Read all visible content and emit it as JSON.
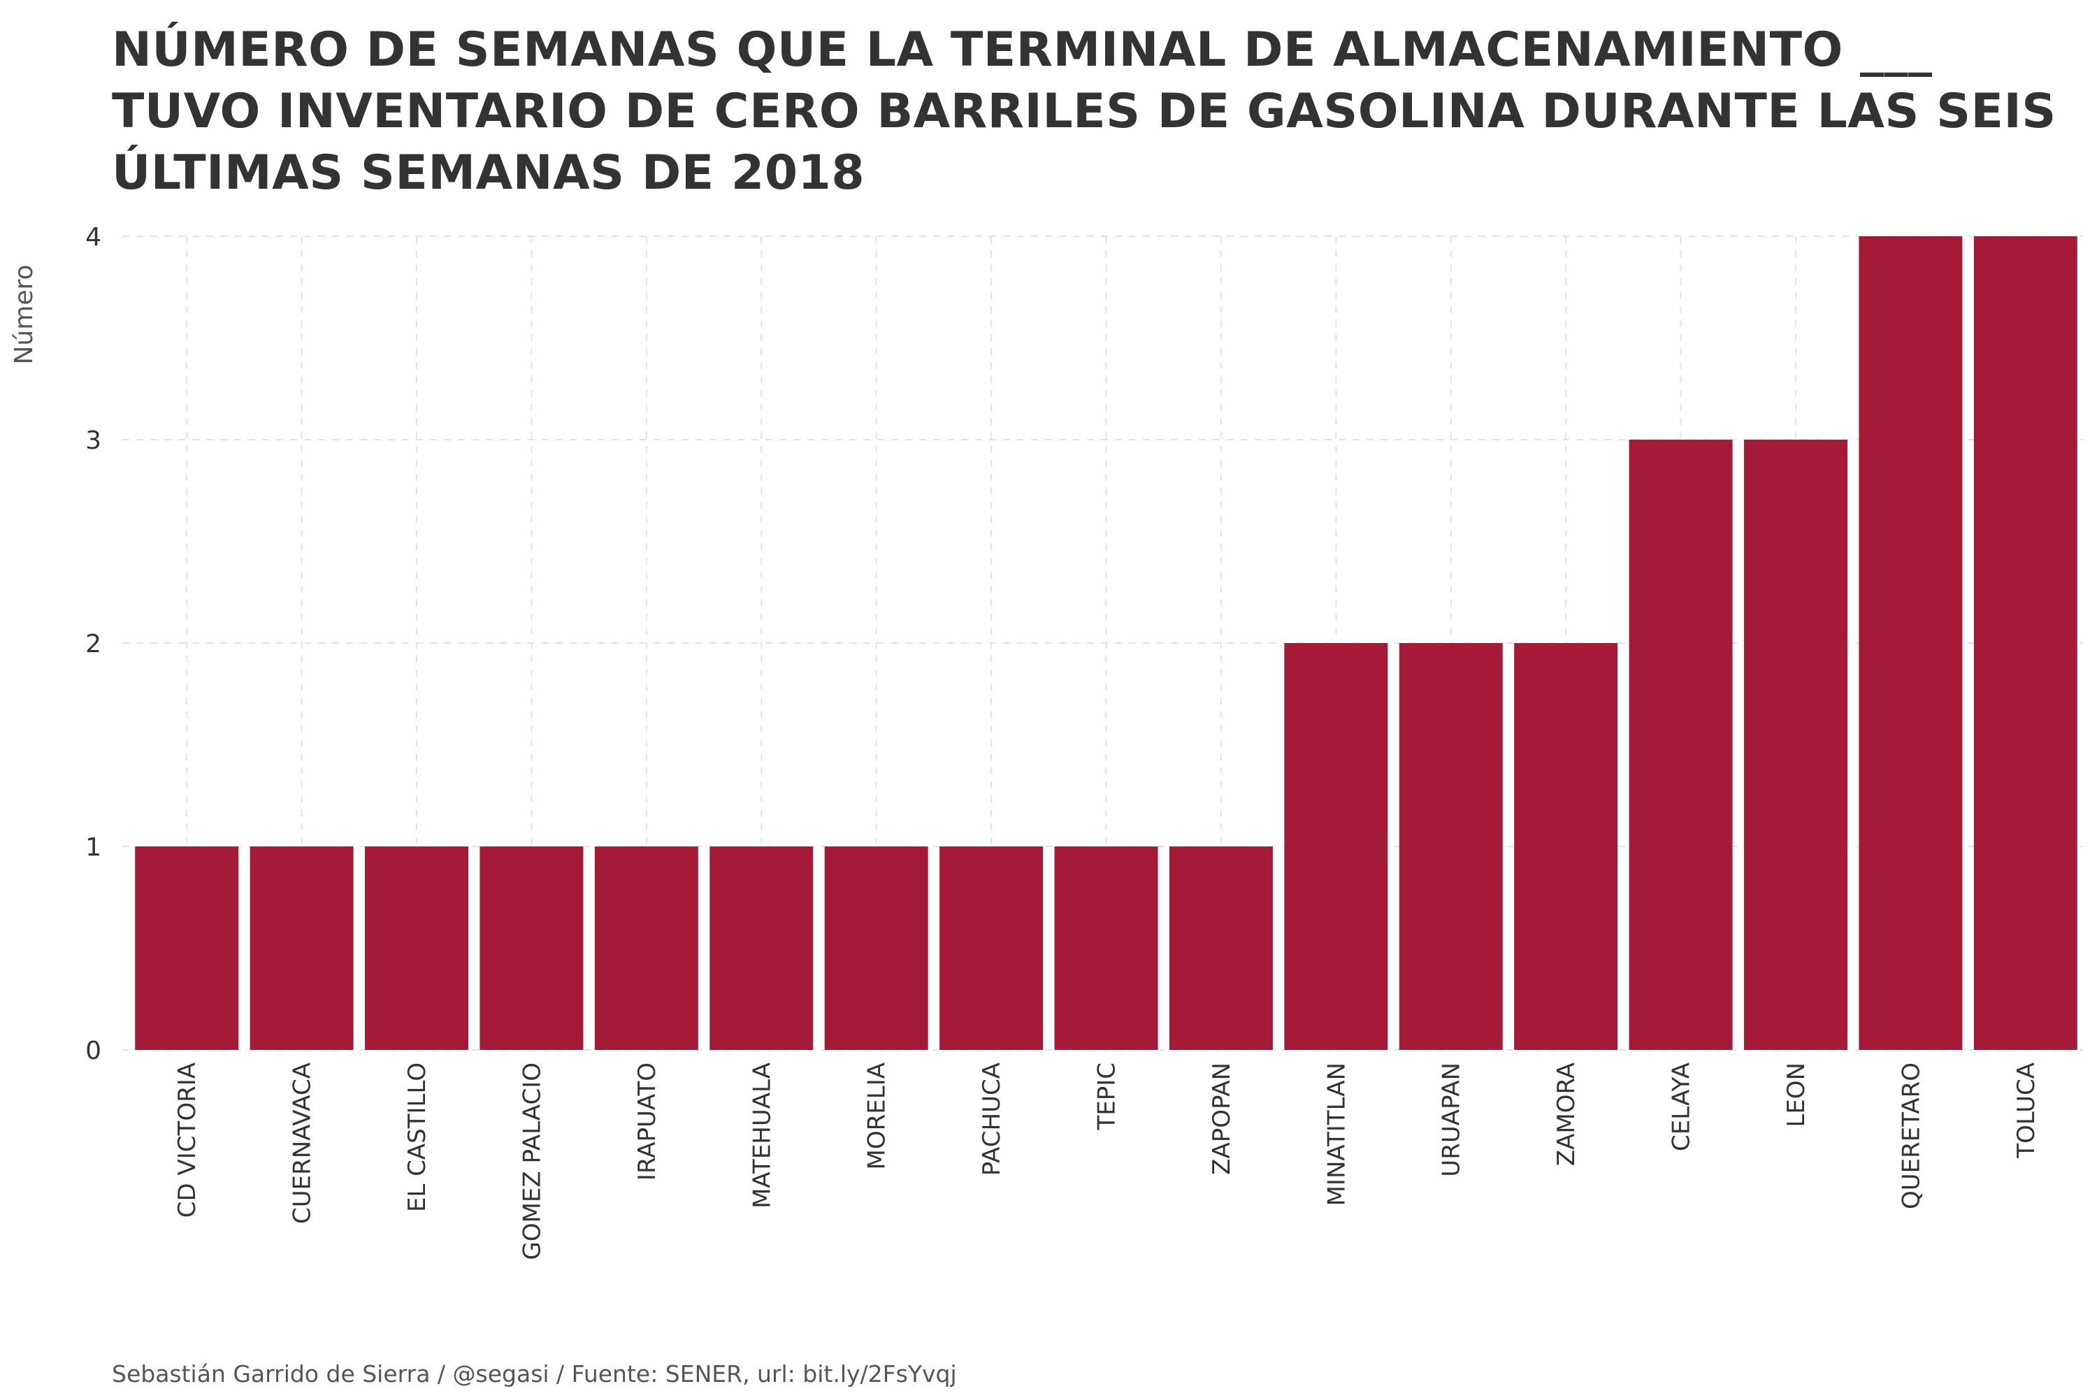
{
  "caption": "Sebastián Garrido de Sierra / @segasi / Fuente: SENER, url: bit.ly/2FsYvqj",
  "colors": {
    "bar": "#a51a36",
    "grid": "#e3e3e3",
    "text": "#333333",
    "caption": "#555555"
  },
  "chart_data": {
    "type": "bar",
    "title": "NÚMERO DE SEMANAS QUE LA TERMINAL DE ALMACENAMIENTO ___ TUVO INVENTARIO DE CERO BARRILES DE GASOLINA DURANTE LAS SEIS ÚLTIMAS SEMANAS DE 2018",
    "xlabel": "",
    "ylabel": "Número",
    "categories": [
      "CD VICTORIA",
      "CUERNAVACA",
      "EL CASTILLO",
      "GOMEZ PALACIO",
      "IRAPUATO",
      "MATEHUALA",
      "MORELIA",
      "PACHUCA",
      "TEPIC",
      "ZAPOPAN",
      "MINATITLAN",
      "URUAPAN",
      "ZAMORA",
      "CELAYA",
      "LEON",
      "QUERETARO",
      "TOLUCA"
    ],
    "values": [
      1,
      1,
      1,
      1,
      1,
      1,
      1,
      1,
      1,
      1,
      2,
      2,
      2,
      3,
      3,
      4,
      4
    ],
    "ylim": [
      0,
      4
    ],
    "yticks": [
      "0",
      "1",
      "2",
      "3",
      "4"
    ],
    "grid": true,
    "legend": "none"
  }
}
